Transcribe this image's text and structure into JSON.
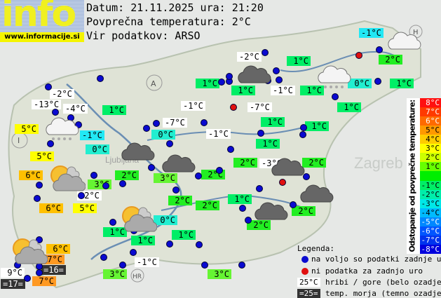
{
  "logo": {
    "text": "info",
    "url": "www.informacije.si"
  },
  "header": {
    "date_line": "Datum: 21.11.2025 ura: 21:20",
    "avg_line": "Povprečna temperatura: 2°C",
    "source_line": "Vir podatkov: ARSO"
  },
  "map_labels": {
    "zagreb": "Zagreb",
    "ljubljana": "Ljubljana",
    "a": "A",
    "i": "I",
    "h": "H",
    "hr": "HR"
  },
  "stations": [
    {
      "t": "-1°C",
      "k": "c1"
    },
    {
      "t": "2°C",
      "k": "g"
    },
    {
      "t": "-2°C",
      "k": "w"
    },
    {
      "t": "1°C",
      "k": "g1"
    },
    {
      "t": "1°C",
      "k": "g1"
    },
    {
      "t": "1°C",
      "k": "g1"
    },
    {
      "t": "-1°C",
      "k": "w"
    },
    {
      "t": "1°C",
      "k": "g1"
    },
    {
      "t": "0°C",
      "k": "c0"
    },
    {
      "t": "1°C",
      "k": "g1"
    },
    {
      "t": "-2°C",
      "k": "w"
    },
    {
      "t": "-13°C",
      "k": "w"
    },
    {
      "t": "-4°C",
      "k": "w"
    },
    {
      "t": "1°C",
      "k": "g1"
    },
    {
      "t": "-1°C",
      "k": "w"
    },
    {
      "t": "-7°C",
      "k": "w"
    },
    {
      "t": "1°C",
      "k": "g1"
    },
    {
      "t": "5°C",
      "k": "y"
    },
    {
      "t": "-1°C",
      "k": "c1"
    },
    {
      "t": "0°C",
      "k": "c0"
    },
    {
      "t": "-7°C",
      "k": "w"
    },
    {
      "t": "1°C",
      "k": "g1"
    },
    {
      "t": "1°C",
      "k": "g1"
    },
    {
      "t": "-1°C",
      "k": "w"
    },
    {
      "t": "0°C",
      "k": "c0"
    },
    {
      "t": "5°C",
      "k": "y"
    },
    {
      "t": "1°C",
      "k": "g1"
    },
    {
      "t": "2°C",
      "k": "g"
    },
    {
      "t": "-3°C",
      "k": "w"
    },
    {
      "t": "2°C",
      "k": "g"
    },
    {
      "t": "6°C",
      "k": "o6"
    },
    {
      "t": "2°C",
      "k": "g"
    },
    {
      "t": "3°C",
      "k": "g3"
    },
    {
      "t": "3°C",
      "k": "g3"
    },
    {
      "t": "2°C",
      "k": "g"
    },
    {
      "t": "-2°C",
      "k": "w"
    },
    {
      "t": "2°C",
      "k": "g"
    },
    {
      "t": "2°C",
      "k": "g"
    },
    {
      "t": "1°C",
      "k": "g1"
    },
    {
      "t": "6°C",
      "k": "o6"
    },
    {
      "t": "5°C",
      "k": "y"
    },
    {
      "t": "0°C",
      "k": "c0"
    },
    {
      "t": "2°C",
      "k": "g"
    },
    {
      "t": "2°C",
      "k": "g"
    },
    {
      "t": "1°C",
      "k": "g1"
    },
    {
      "t": "1°C",
      "k": "g1"
    },
    {
      "t": "1°C",
      "k": "g1"
    },
    {
      "t": "6°C",
      "k": "o6"
    },
    {
      "t": "7°C",
      "k": "o7"
    },
    {
      "t": "=16=",
      "k": "d"
    },
    {
      "t": "9°C",
      "k": "w"
    },
    {
      "t": "=17=",
      "k": "d"
    },
    {
      "t": "7°C",
      "k": "o7"
    },
    {
      "t": "-1°C",
      "k": "w"
    },
    {
      "t": "3°C",
      "k": "g3"
    },
    {
      "t": "3°C",
      "k": "g3"
    }
  ],
  "label_colors": {
    "g": "#22ee22",
    "g1": "#00ee66",
    "g3": "#66f533",
    "c0": "#22eed0",
    "c1": "#22e8f4",
    "y": "#ffff00",
    "o6": "#ffc000",
    "o7": "#ff9922",
    "w": "#ffffff",
    "d": "#333333"
  },
  "weather_icons": [
    "cloudy-dark",
    "cloudy-dark",
    "cloudy-dark",
    "cloudy-dark",
    "cloudy-dark",
    "cloudy-dark",
    "cloud-snow",
    "cloud-snow",
    "cloud-light",
    "partly-cloudy",
    "partly-cloudy",
    "partly-cloudy"
  ],
  "scale": {
    "title": "Odstopanje od povprečne temperature:",
    "steps": [
      {
        "v": "8°C",
        "c": "#ff1010"
      },
      {
        "v": "7°C",
        "c": "#ff3a00"
      },
      {
        "v": "6°C",
        "c": "#ff6a00"
      },
      {
        "v": "5°C",
        "c": "#ff9900"
      },
      {
        "v": "4°C",
        "c": "#ffcc00"
      },
      {
        "v": "3°C",
        "c": "#ffff00"
      },
      {
        "v": "2°C",
        "c": "#ccff00"
      },
      {
        "v": "1°C",
        "c": "#66ff00"
      },
      {
        "v": "",
        "c": "#00ee00"
      },
      {
        "v": "-1°C",
        "c": "#00ee66"
      },
      {
        "v": "-2°C",
        "c": "#00eeaa"
      },
      {
        "v": "-3°C",
        "c": "#00e8e8"
      },
      {
        "v": "-4°C",
        "c": "#00bbff"
      },
      {
        "v": "-5°C",
        "c": "#0088ff"
      },
      {
        "v": "-6°C",
        "c": "#0055ff"
      },
      {
        "v": "-7°C",
        "c": "#0033ee"
      },
      {
        "v": "-8°C",
        "c": "#0000dd"
      }
    ]
  },
  "legend": {
    "title": "Legenda:",
    "blue": "na voljo so podatki zadnje ure",
    "red": "ni podatka za zadnjo uro",
    "hill_sample": "25°C",
    "hill": "hribi / gore (belo ozadje)",
    "sea_sample": "=25=",
    "sea": "temp. morja (temno ozadje)"
  }
}
